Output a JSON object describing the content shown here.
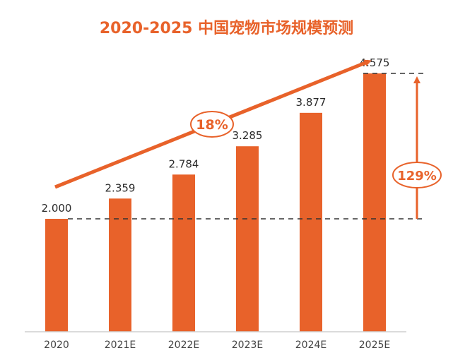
{
  "colors": {
    "bar": "#e8622a",
    "arrow": "#e8622a",
    "text": "#2b2b2b",
    "axis": "#cfcfcf"
  },
  "chart_data": {
    "type": "bar",
    "title": "2020-2025 中国宠物市场规模预测",
    "xlabel": "",
    "ylabel": "",
    "categories": [
      "2020",
      "2021E",
      "2022E",
      "2023E",
      "2024E",
      "2025E"
    ],
    "values": [
      2.0,
      2.359,
      2.784,
      3.285,
      3.877,
      4.575
    ],
    "value_labels": [
      "2.000",
      "2.359",
      "2.784",
      "3.285",
      "3.877",
      "4.575"
    ],
    "ylim": [
      0,
      5
    ],
    "grid": false,
    "annotations": {
      "growth_rate": "18%",
      "total_growth": "129%"
    }
  }
}
